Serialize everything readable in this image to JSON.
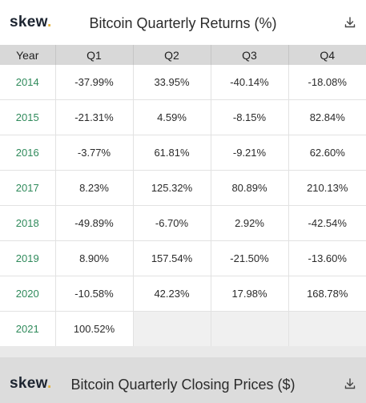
{
  "returns_panel": {
    "logo_text": "skew",
    "logo_dot": ".",
    "title": "Bitcoin Quarterly Returns (%)",
    "download_icon": "download-icon",
    "columns": [
      "Year",
      "Q1",
      "Q2",
      "Q3",
      "Q4"
    ],
    "rows": [
      {
        "year": "2014",
        "q1": "-37.99%",
        "q2": "33.95%",
        "q3": "-40.14%",
        "q4": "-18.08%"
      },
      {
        "year": "2015",
        "q1": "-21.31%",
        "q2": "4.59%",
        "q3": "-8.15%",
        "q4": "82.84%"
      },
      {
        "year": "2016",
        "q1": "-3.77%",
        "q2": "61.81%",
        "q3": "-9.21%",
        "q4": "62.60%"
      },
      {
        "year": "2017",
        "q1": "8.23%",
        "q2": "125.32%",
        "q3": "80.89%",
        "q4": "210.13%"
      },
      {
        "year": "2018",
        "q1": "-49.89%",
        "q2": "-6.70%",
        "q3": "2.92%",
        "q4": "-42.54%"
      },
      {
        "year": "2019",
        "q1": "8.90%",
        "q2": "157.54%",
        "q3": "-21.50%",
        "q4": "-13.60%"
      },
      {
        "year": "2020",
        "q1": "-10.58%",
        "q2": "42.23%",
        "q3": "17.98%",
        "q4": "168.78%"
      },
      {
        "year": "2021",
        "q1": "100.52%",
        "q2": "",
        "q3": "",
        "q4": ""
      }
    ]
  },
  "prices_panel": {
    "logo_text": "skew",
    "logo_dot": ".",
    "title": "Bitcoin Quarterly Closing Prices ($)",
    "download_icon": "download-icon"
  },
  "colors": {
    "year_text": "#2f8a5b",
    "logo_dot": "#e3b23c",
    "header_row_bg": "#d8d8d8"
  }
}
